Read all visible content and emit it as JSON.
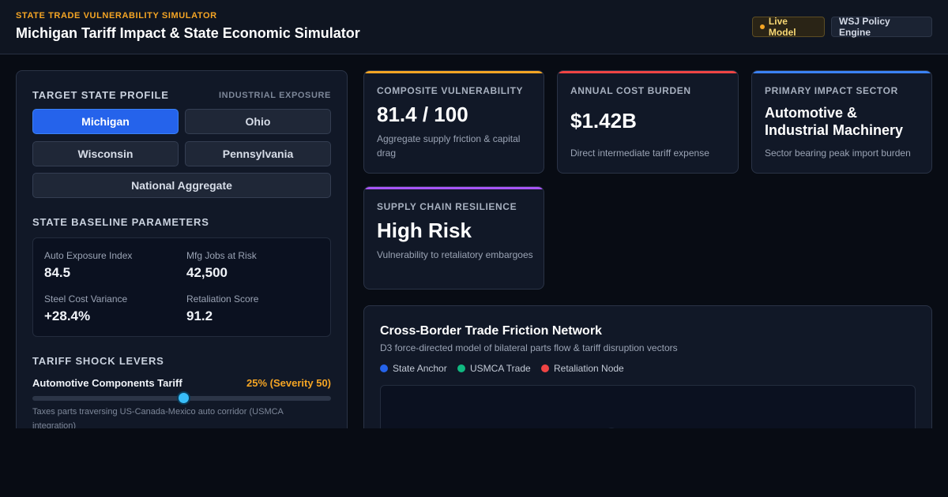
{
  "header": {
    "eyebrow": "STATE TRADE VULNERABILITY SIMULATOR",
    "title": "Michigan Tariff Impact & State Economic Simulator",
    "badge_live": "Live Model",
    "badge_engine": "WSJ Policy Engine"
  },
  "profile": {
    "title": "TARGET STATE PROFILE",
    "subtitle": "INDUSTRIAL EXPOSURE",
    "states": [
      "Michigan",
      "Ohio",
      "Wisconsin",
      "Pennsylvania",
      "National Aggregate"
    ],
    "selected": "Michigan"
  },
  "baseline": {
    "title": "STATE BASELINE PARAMETERS",
    "params": [
      {
        "label": "Auto Exposure Index",
        "value": "84.5"
      },
      {
        "label": "Mfg Jobs at Risk",
        "value": "42,500"
      },
      {
        "label": "Steel Cost Variance",
        "value": "+28.4%"
      },
      {
        "label": "Retaliation Score",
        "value": "91.2"
      }
    ]
  },
  "levers": {
    "title": "TARIFF SHOCK LEVERS",
    "items": [
      {
        "label": "Automotive Components Tariff",
        "value": "25% (Severity 50)",
        "level_fraction": 0.5,
        "description": "Taxes parts traversing US-Canada-Mexico auto corridor (USMCA integration)"
      }
    ]
  },
  "cards": [
    {
      "label": "COMPOSITE VULNERABILITY",
      "value": "81.4 / 100",
      "description": "Aggregate supply friction & capital drag",
      "accent": "#f5a524"
    },
    {
      "label": "ANNUAL COST BURDEN",
      "value": "$1.42B",
      "description": "Direct intermediate tariff expense",
      "accent": "#ef4444"
    },
    {
      "label": "PRIMARY IMPACT SECTOR",
      "value": "Automotive & Industrial Machinery",
      "description": "Sector bearing peak import burden",
      "accent": "#3b82f6"
    },
    {
      "label": "SUPPLY CHAIN RESILIENCE",
      "value": "High Risk",
      "description": "Vulnerability to retaliatory embargoes",
      "accent": "#a855f7"
    }
  ],
  "network": {
    "title": "Cross-Border Trade Friction Network",
    "subtitle": "D3 force-directed model of bilateral parts flow & tariff disruption vectors",
    "legend": [
      {
        "label": "State Anchor",
        "color": "#2563eb"
      },
      {
        "label": "USMCA Trade",
        "color": "#10b981"
      },
      {
        "label": "Retaliation Node",
        "color": "#ef4444"
      }
    ]
  }
}
